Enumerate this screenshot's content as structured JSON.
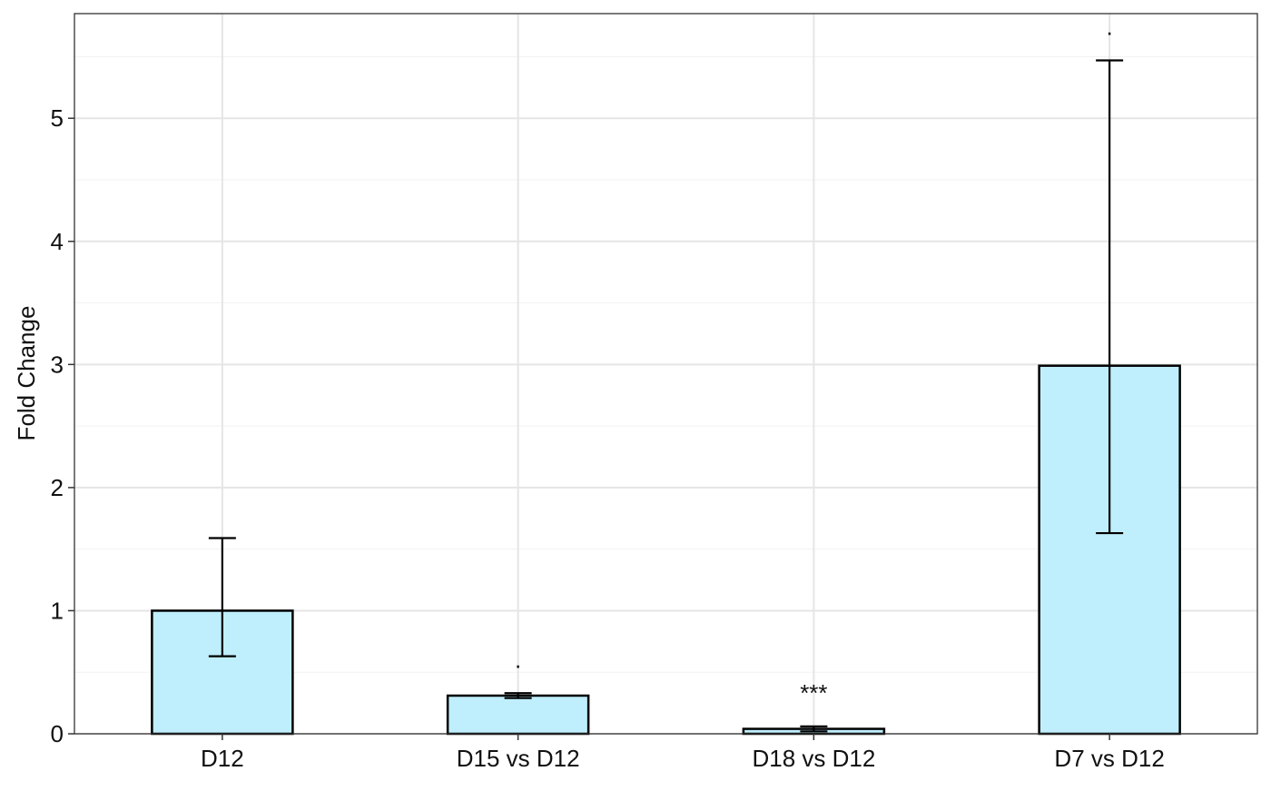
{
  "chart_data": {
    "type": "bar",
    "title": "",
    "xlabel": "",
    "ylabel": "Fold Change",
    "ylim": [
      0,
      5.85
    ],
    "yticks": [
      0,
      1,
      2,
      3,
      4,
      5
    ],
    "ytick_labels": [
      "0",
      "1",
      "2",
      "3",
      "4",
      "5"
    ],
    "grid": true,
    "legend": "none",
    "categories": [
      "D12",
      "D15 vs D12",
      "D18 vs D12",
      "D7 vs D12"
    ],
    "values": [
      1.0,
      0.31,
      0.04,
      2.99
    ],
    "error_low": [
      0.63,
      0.29,
      0.02,
      1.63
    ],
    "error_high": [
      1.59,
      0.33,
      0.06,
      5.47
    ],
    "significance": [
      ".",
      "***",
      "."
    ],
    "bar_fill": "#bfeefc",
    "bar_stroke": "#000000",
    "grid_major_color": "#e5e5e5",
    "grid_minor_color": "#f2f2f2",
    "panel_border_color": "#333333"
  }
}
